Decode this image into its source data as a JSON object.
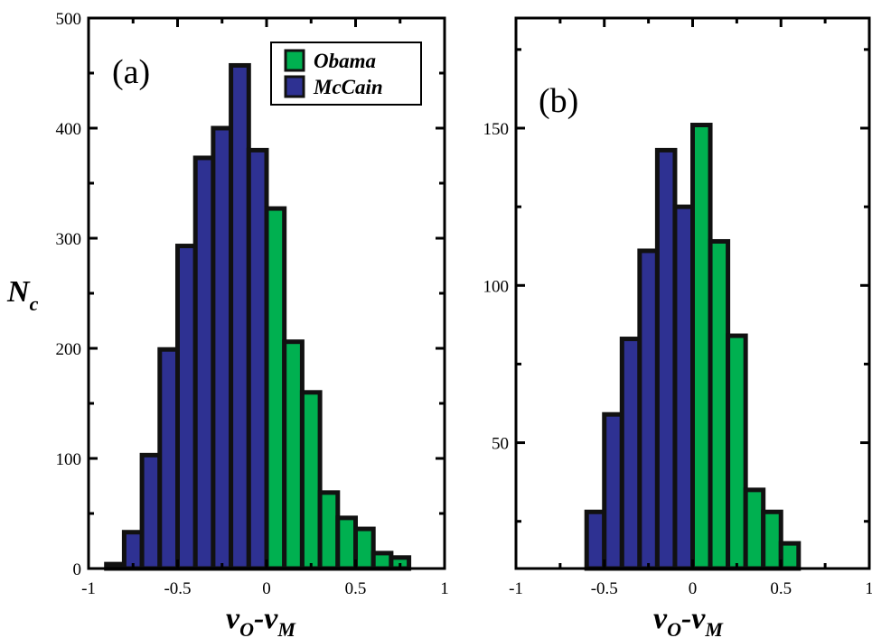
{
  "figure": {
    "ylabel_main": "N",
    "ylabel_sub": "c",
    "xlabel_a": "v",
    "xlabel_a_sub1": "O",
    "xlabel_a_sep": "-v",
    "xlabel_a_sub2": "M",
    "xlabel_b": "v",
    "xlabel_b_sub1": "O",
    "xlabel_b_sep": "-v",
    "xlabel_b_sub2": "M",
    "colors": {
      "obama": "#00b050",
      "mccain": "#2e3192",
      "edge": "#111111"
    }
  },
  "chart_data": [
    {
      "type": "bar",
      "panel_label": "(a)",
      "xlim": [
        -1,
        1
      ],
      "ylim": [
        0,
        500
      ],
      "xticks": [
        "-1",
        "-0.5",
        "0",
        "0.5",
        "1"
      ],
      "yticks": [
        "0",
        "100",
        "200",
        "300",
        "400",
        "500"
      ],
      "bin_width": 0.1,
      "legend": {
        "position": "top-right",
        "entries": [
          "Obama",
          "McCain"
        ]
      },
      "series": [
        {
          "name": "McCain",
          "color": "#2e3192",
          "x": [
            -0.85,
            -0.75,
            -0.65,
            -0.55,
            -0.45,
            -0.35,
            -0.25,
            -0.15,
            -0.05
          ],
          "values": [
            4,
            33,
            103,
            199,
            293,
            373,
            400,
            457,
            380
          ]
        },
        {
          "name": "Obama",
          "color": "#00b050",
          "x": [
            0.05,
            0.15,
            0.25,
            0.35,
            0.45,
            0.55,
            0.65,
            0.75
          ],
          "values": [
            327,
            206,
            160,
            69,
            46,
            36,
            14,
            10
          ]
        }
      ]
    },
    {
      "type": "bar",
      "panel_label": "(b)",
      "xlim": [
        -1,
        1
      ],
      "ylim": [
        10,
        185
      ],
      "xticks": [
        "-1",
        "-0.5",
        "0",
        "0.5",
        "1"
      ],
      "yticks": [
        "50",
        "100",
        "150"
      ],
      "bin_width": 0.1,
      "series": [
        {
          "name": "McCain",
          "color": "#2e3192",
          "x": [
            -0.55,
            -0.45,
            -0.35,
            -0.25,
            -0.15,
            -0.05
          ],
          "values": [
            28,
            59,
            83,
            111,
            143,
            125
          ]
        },
        {
          "name": "Obama",
          "color": "#00b050",
          "x": [
            0.05,
            0.15,
            0.25,
            0.35,
            0.45,
            0.55
          ],
          "values": [
            151,
            114,
            84,
            35,
            28,
            18
          ]
        }
      ]
    }
  ]
}
